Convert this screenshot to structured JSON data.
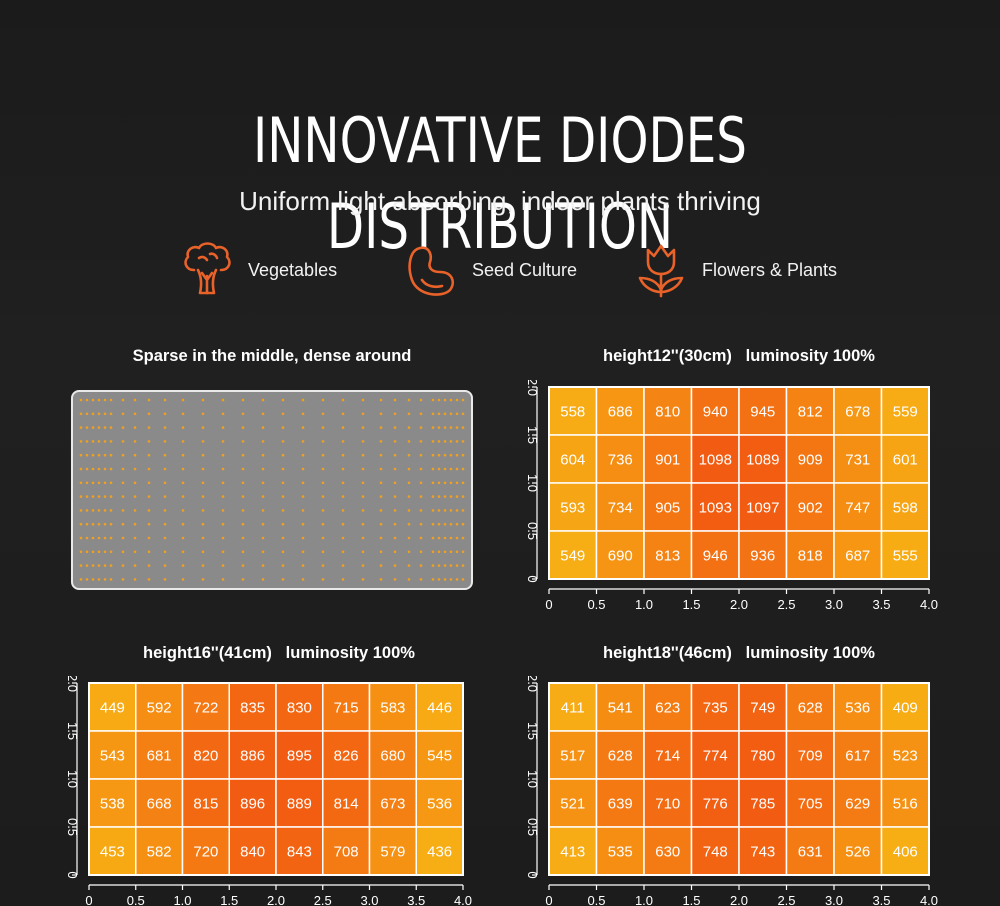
{
  "header": {
    "title": "INNOVATIVE DIODES DISTRIBUTION",
    "subtitle": "Uniform light absorbing, indoor plants thriving"
  },
  "features": [
    {
      "label": "Vegetables",
      "icon": "broccoli-icon"
    },
    {
      "label": "Seed Culture",
      "icon": "bean-seed-icon"
    },
    {
      "label": "Flowers & Plants",
      "icon": "flower-icon"
    }
  ],
  "colors": {
    "accent": "#e8622a",
    "diode": "#f0a020",
    "panel": "#8a8a8a",
    "heat_low": "#f7ad14",
    "heat_high": "#f25c12"
  },
  "diode_panel": {
    "title": "Sparse in the middle, dense around"
  },
  "chart_data": [
    {
      "type": "heatmap",
      "title": "height12''(30cm)   luminosity 100%",
      "x_ticks": [
        "0",
        "0.5",
        "1.0",
        "1.5",
        "2.0",
        "2.5",
        "3.0",
        "3.5",
        "4.0"
      ],
      "y_ticks": [
        "0",
        "0.5",
        "1.0",
        "1.5",
        "2.0"
      ],
      "xlim": [
        0,
        4.0
      ],
      "ylim": [
        0,
        2.0
      ],
      "rows": [
        [
          558,
          686,
          810,
          940,
          945,
          812,
          678,
          559
        ],
        [
          604,
          736,
          901,
          1098,
          1089,
          909,
          731,
          601
        ],
        [
          593,
          734,
          905,
          1093,
          1097,
          902,
          747,
          598
        ],
        [
          549,
          690,
          813,
          946,
          936,
          818,
          687,
          555
        ]
      ]
    },
    {
      "type": "heatmap",
      "title": "height16''(41cm)   luminosity 100%",
      "x_ticks": [
        "0",
        "0.5",
        "1.0",
        "1.5",
        "2.0",
        "2.5",
        "3.0",
        "3.5",
        "4.0"
      ],
      "y_ticks": [
        "0",
        "0.5",
        "1.0",
        "1.5",
        "2.0"
      ],
      "xlim": [
        0,
        4.0
      ],
      "ylim": [
        0,
        2.0
      ],
      "rows": [
        [
          449,
          592,
          722,
          835,
          830,
          715,
          583,
          446
        ],
        [
          543,
          681,
          820,
          886,
          895,
          826,
          680,
          545
        ],
        [
          538,
          668,
          815,
          896,
          889,
          814,
          673,
          536
        ],
        [
          453,
          582,
          720,
          840,
          843,
          708,
          579,
          436
        ]
      ]
    },
    {
      "type": "heatmap",
      "title": "height18''(46cm)   luminosity 100%",
      "x_ticks": [
        "0",
        "0.5",
        "1.0",
        "1.5",
        "2.0",
        "2.5",
        "3.0",
        "3.5",
        "4.0"
      ],
      "y_ticks": [
        "0",
        "0.5",
        "1.0",
        "1.5",
        "2.0"
      ],
      "xlim": [
        0,
        4.0
      ],
      "ylim": [
        0,
        2.0
      ],
      "rows": [
        [
          411,
          541,
          623,
          735,
          749,
          628,
          536,
          409
        ],
        [
          517,
          628,
          714,
          774,
          780,
          709,
          617,
          523
        ],
        [
          521,
          639,
          710,
          776,
          785,
          705,
          629,
          516
        ],
        [
          413,
          535,
          630,
          748,
          743,
          631,
          526,
          406
        ]
      ]
    }
  ]
}
